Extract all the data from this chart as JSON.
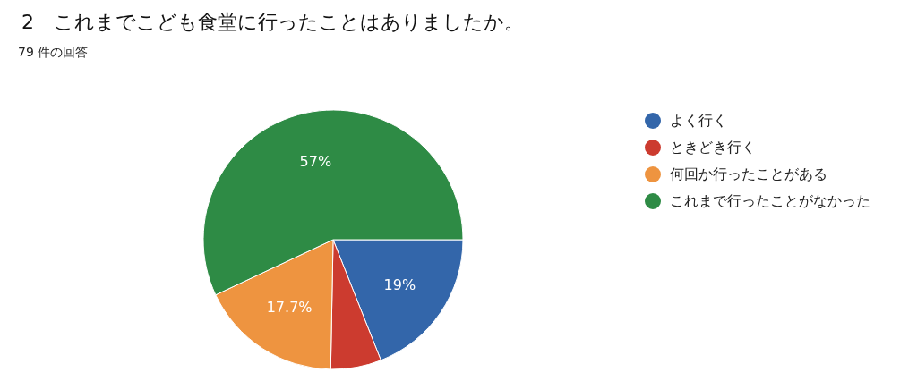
{
  "chart_data": {
    "type": "pie",
    "title": "2　これまでこども食堂に行ったことはありましたか。",
    "subtitle": "79 件の回答",
    "categories": [
      "よく行く",
      "ときどき行く",
      "何回か行ったことがある",
      "これまで行ったことがなかった"
    ],
    "values": [
      19,
      6.3,
      17.7,
      57
    ],
    "colors": [
      "#3366aa",
      "#cc3b2f",
      "#ee9440",
      "#2e8b45"
    ],
    "value_labels": [
      "19%",
      null,
      "17.7%",
      "57%"
    ],
    "legend": "right"
  }
}
